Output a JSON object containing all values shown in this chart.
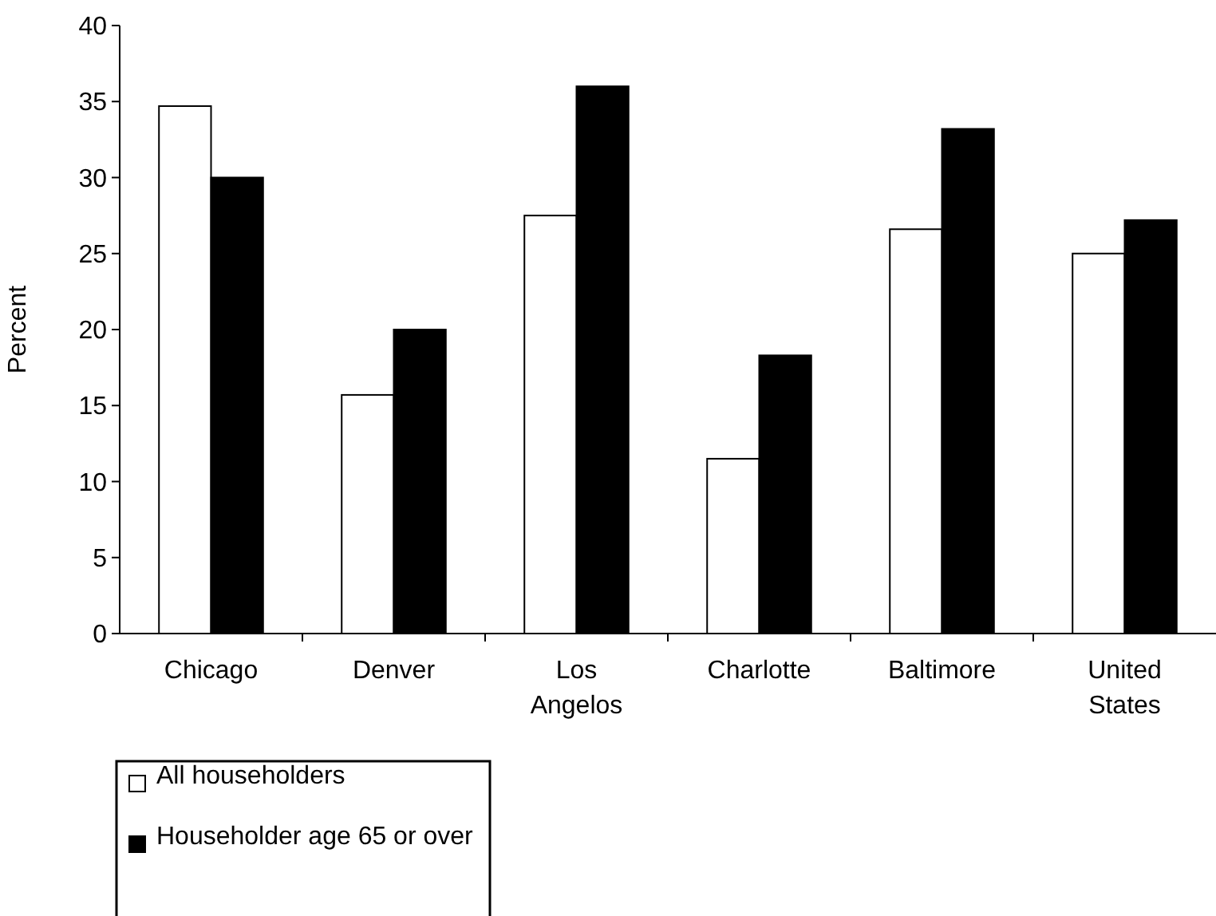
{
  "chart_data": {
    "type": "bar",
    "ylabel": "Percent",
    "categories": [
      "Chicago",
      "Denver",
      "Los Angelos",
      "Charlotte",
      "Baltimore",
      "United States"
    ],
    "series": [
      {
        "name": "All householders",
        "color": "#ffffff",
        "values": [
          34.7,
          15.7,
          27.5,
          11.5,
          26.6,
          25.0
        ]
      },
      {
        "name": "Householder age 65 or over",
        "color": "#000000",
        "values": [
          30.0,
          20.0,
          36.0,
          18.3,
          33.2,
          27.2
        ]
      }
    ],
    "ylim": [
      0,
      40
    ],
    "yticks": [
      0,
      5,
      10,
      15,
      20,
      25,
      30,
      35,
      40
    ],
    "grid": false,
    "legend": "bottom left"
  }
}
